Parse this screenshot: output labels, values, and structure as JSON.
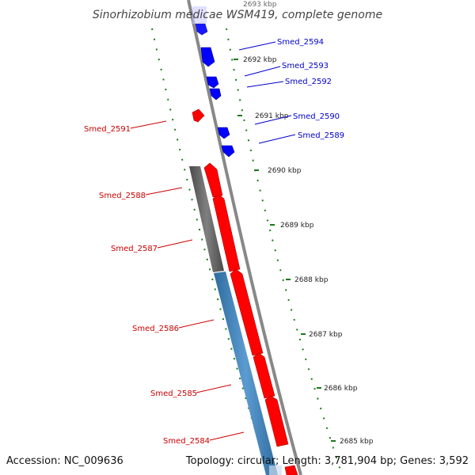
{
  "title": "Sinorhizobium medicae WSM419, complete genome",
  "accession": "Accession: NC_009636",
  "summary": "Topology: circular; Length: 3,781,904 bp; Genes: 3,592",
  "ticks": [
    {
      "label": "2693 kbp"
    },
    {
      "label": "2692 kbp"
    },
    {
      "label": "2691 kbp"
    },
    {
      "label": "2690 kbp"
    },
    {
      "label": "2689 kbp"
    },
    {
      "label": "2688 kbp"
    },
    {
      "label": "2687 kbp"
    },
    {
      "label": "2686 kbp"
    },
    {
      "label": "2685 kbp"
    }
  ],
  "genes_forward": [
    {
      "name": "Smed_2591"
    },
    {
      "name": "Smed_2588"
    },
    {
      "name": "Smed_2587"
    },
    {
      "name": "Smed_2586"
    },
    {
      "name": "Smed_2585"
    },
    {
      "name": "Smed_2584"
    }
  ],
  "genes_reverse": [
    {
      "name": "Smed_2594"
    },
    {
      "name": "Smed_2593"
    },
    {
      "name": "Smed_2592"
    },
    {
      "name": "Smed_2590"
    },
    {
      "name": "Smed_2589"
    }
  ],
  "colors": {
    "forward": "#ff0000",
    "reverse": "#0000ff",
    "backbone": "#888888",
    "cog_gray": "#666666",
    "cog_blue": "#4682b4",
    "tick": "#1a7a1a",
    "label_forward": "#cc0000",
    "label_reverse": "#0000cc"
  }
}
